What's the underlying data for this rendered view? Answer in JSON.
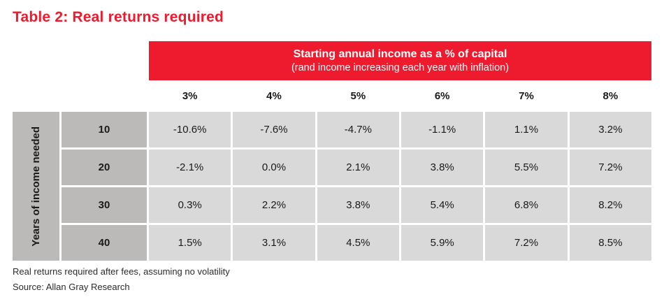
{
  "title": "Table 2: Real returns required",
  "colors": {
    "accent_red": "#ED1B2D",
    "header_cell_gray": "#BCB9B9",
    "data_cell_gray": "#DAD9D9",
    "gridline_white": "#FFFFFF",
    "text_black": "#1A1A1A"
  },
  "chart_data": {
    "type": "table",
    "title": "Table 2: Real returns required",
    "column_group_header": "Starting annual income as a % of capital",
    "column_group_subheader": "(rand income increasing each year with inflation)",
    "row_axis_label": "Years of income needed",
    "columns": [
      "3%",
      "4%",
      "5%",
      "6%",
      "7%",
      "8%"
    ],
    "rows": [
      {
        "label": "10",
        "values": [
          "-10.6%",
          "-7.6%",
          "-4.7%",
          "-1.1%",
          "1.1%",
          "3.2%"
        ]
      },
      {
        "label": "20",
        "values": [
          "-2.1%",
          "0.0%",
          "2.1%",
          "3.8%",
          "5.5%",
          "7.2%"
        ]
      },
      {
        "label": "30",
        "values": [
          "0.3%",
          "2.2%",
          "3.8%",
          "5.4%",
          "6.8%",
          "8.2%"
        ]
      },
      {
        "label": "40",
        "values": [
          "1.5%",
          "3.1%",
          "4.5%",
          "5.9%",
          "7.2%",
          "8.5%"
        ]
      }
    ],
    "footnote": "Real returns required after fees, assuming no volatility",
    "source": "Source: Allan Gray Research"
  }
}
